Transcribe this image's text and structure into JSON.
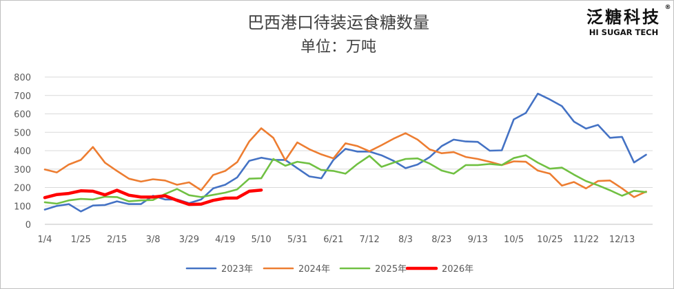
{
  "colors": {
    "s2023": "#4472C4",
    "s2024": "#ED7D31",
    "s2025": "#70C042",
    "s2026": "#FF0000",
    "grid": "#d9d9d9",
    "axis": "#bfbfbf"
  },
  "logo": {
    "cn": "泛糖科技",
    "en": "HI SUGAR TECH",
    "mark": "®"
  },
  "chart_data": {
    "type": "line",
    "title": "巴西港口待装运食糖数量",
    "subtitle": "单位：万吨",
    "xlabel": "",
    "ylabel": "",
    "ylim": [
      0,
      800
    ],
    "yticks": [
      0,
      100,
      200,
      300,
      400,
      500,
      600,
      700,
      800
    ],
    "grid": true,
    "legend_position": "bottom",
    "x_tick_labels": [
      "1/4",
      "1/25",
      "2/15",
      "3/8",
      "3/29",
      "4/19",
      "5/10",
      "5/31",
      "6/21",
      "7/12",
      "8/3",
      "8/23",
      "9/13",
      "10/5",
      "10/25",
      "11/22",
      "12/13"
    ],
    "x_tick_week_index": [
      0,
      3,
      6,
      9,
      12,
      15,
      18,
      21,
      24,
      27,
      30,
      33,
      36,
      39,
      42,
      45,
      48
    ],
    "series": [
      {
        "name": "2023年",
        "color_key": "s2023",
        "values": [
          80,
          100,
          110,
          70,
          102,
          105,
          125,
          110,
          110,
          155,
          135,
          135,
          115,
          135,
          195,
          215,
          255,
          345,
          362,
          350,
          350,
          305,
          260,
          250,
          350,
          410,
          395,
          395,
          375,
          345,
          305,
          325,
          365,
          425,
          460,
          450,
          448,
          400,
          402,
          570,
          605,
          710,
          678,
          642,
          558,
          520,
          540,
          470,
          475,
          336,
          378
        ]
      },
      {
        "name": "2024年",
        "color_key": "s2024",
        "values": [
          298,
          282,
          325,
          350,
          420,
          335,
          290,
          248,
          232,
          245,
          238,
          215,
          228,
          185,
          268,
          290,
          338,
          450,
          522,
          470,
          348,
          445,
          408,
          380,
          358,
          440,
          425,
          397,
          430,
          465,
          495,
          460,
          407,
          386,
          392,
          366,
          355,
          340,
          322,
          342,
          340,
          292,
          275,
          210,
          230,
          195,
          235,
          238,
          195,
          148,
          178
        ]
      },
      {
        "name": "2025年",
        "color_key": "s2025",
        "values": [
          120,
          112,
          130,
          138,
          135,
          150,
          148,
          125,
          130,
          132,
          165,
          192,
          158,
          148,
          160,
          172,
          190,
          248,
          250,
          355,
          318,
          340,
          330,
          295,
          290,
          275,
          328,
          372,
          312,
          335,
          355,
          358,
          330,
          292,
          275,
          322,
          322,
          328,
          322,
          360,
          375,
          335,
          302,
          308,
          270,
          235,
          212,
          185,
          155,
          182,
          175
        ]
      },
      {
        "name": "2026年",
        "color_key": "s2026",
        "values": [
          145,
          162,
          168,
          182,
          180,
          160,
          185,
          158,
          148,
          148,
          155,
          130,
          108,
          110,
          130,
          142,
          143,
          180,
          186
        ]
      }
    ]
  }
}
